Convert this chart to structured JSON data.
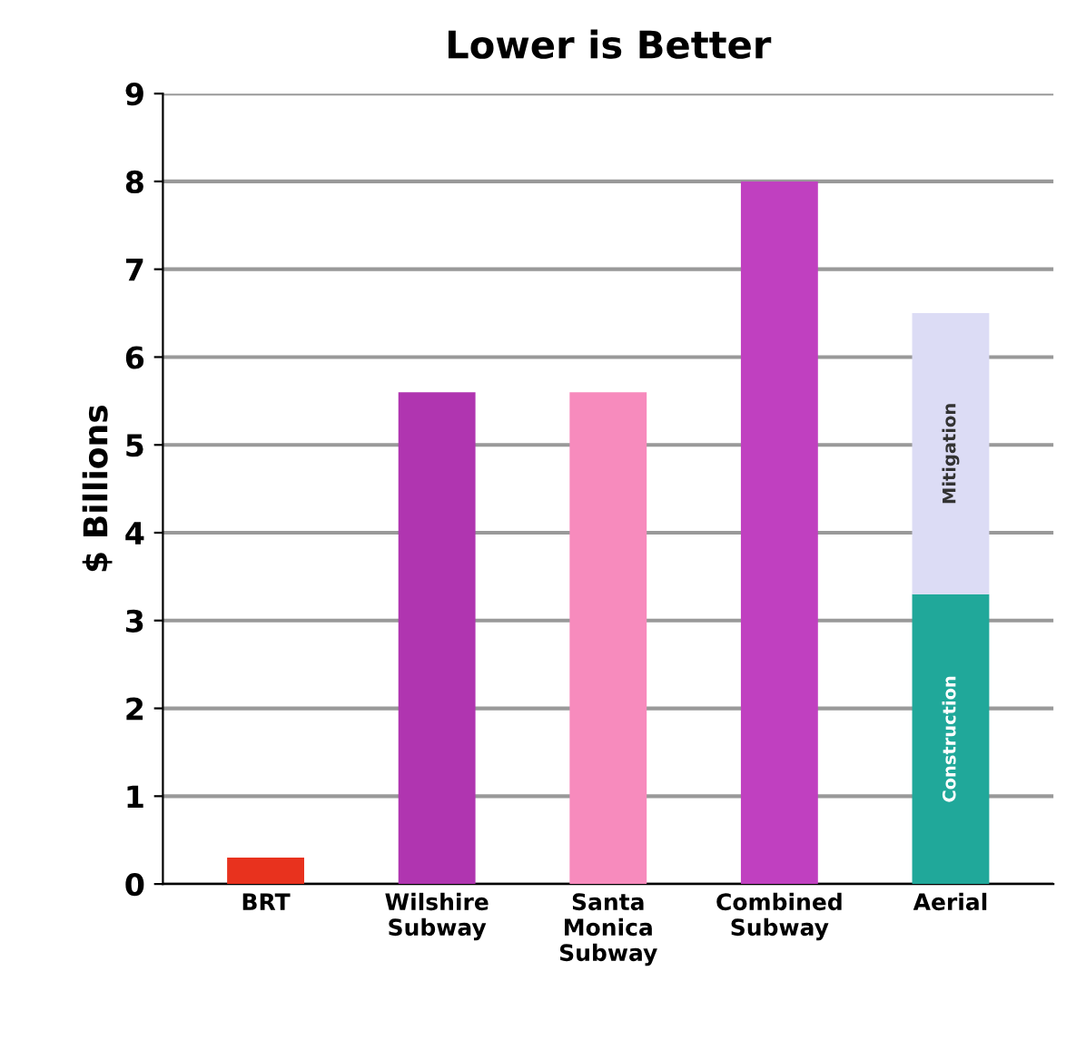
{
  "chart_data": {
    "type": "bar",
    "title": "Lower is Better",
    "ylabel": "$ Billions",
    "categories": [
      "BRT",
      "Wilshire\nSubway",
      "Santa\nMonica\nSubway",
      "Combined\nSubway",
      "Aerial"
    ],
    "stacked": true,
    "series": [
      {
        "colors": [
          "#e8321e",
          "#b035b0",
          "#f78bbd",
          "#c040c0",
          null
        ],
        "values": [
          0.3,
          5.6,
          5.6,
          8.0,
          null
        ]
      },
      {
        "name": "Construction",
        "color": "#20a89a",
        "values": [
          null,
          null,
          null,
          null,
          3.3
        ]
      },
      {
        "name": "Mitigation",
        "color": "#dcdcf5",
        "values": [
          null,
          null,
          null,
          null,
          3.2
        ]
      }
    ],
    "ylim": [
      0,
      9
    ],
    "yticks": [
      0,
      1,
      2,
      3,
      4,
      5,
      6,
      7,
      8,
      9
    ],
    "grid": "y",
    "legend": false
  }
}
